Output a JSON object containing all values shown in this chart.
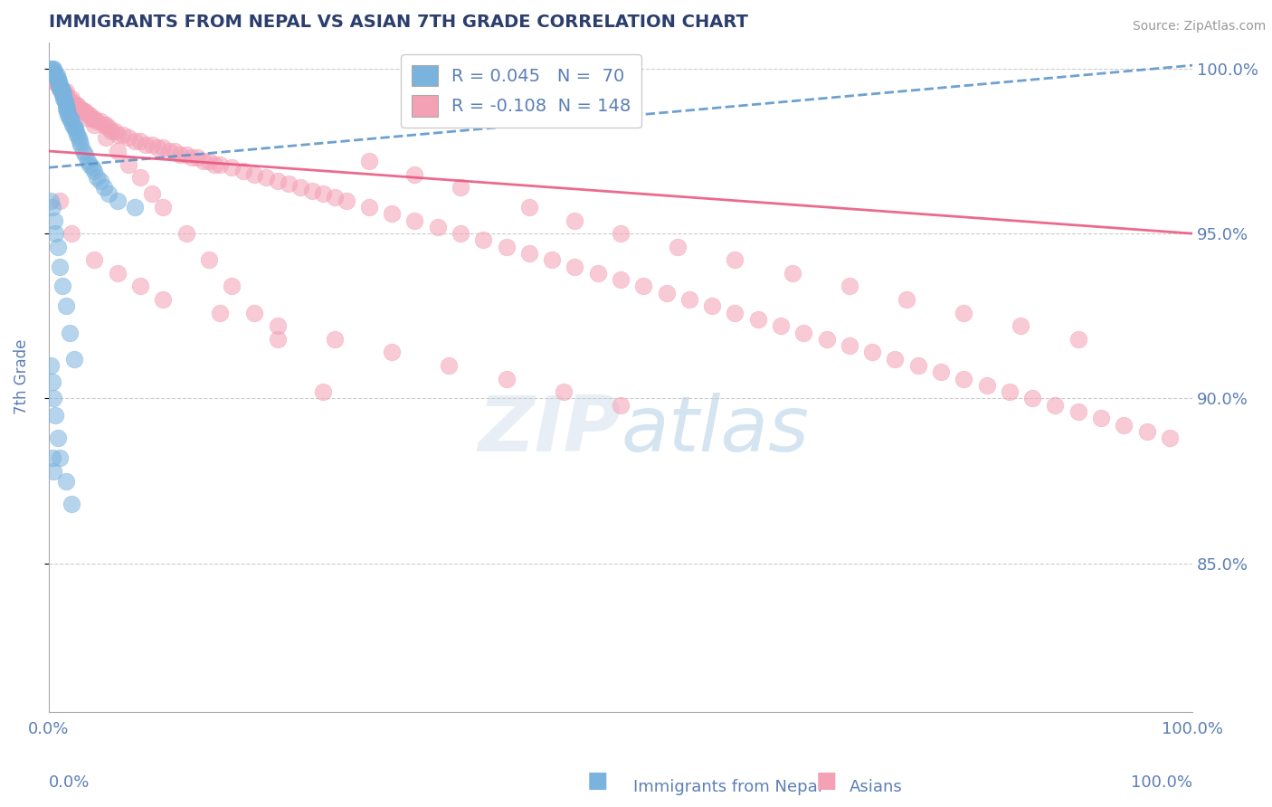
{
  "title": "IMMIGRANTS FROM NEPAL VS ASIAN 7TH GRADE CORRELATION CHART",
  "source_text": "Source: ZipAtlas.com",
  "ylabel": "7th Grade",
  "legend_blue_r": "R = 0.045",
  "legend_blue_n": "N =  70",
  "legend_pink_r": "R = -0.108",
  "legend_pink_n": "N = 148",
  "legend_blue_label": "Immigrants from Nepal",
  "legend_pink_label": "Asians",
  "x_min": 0.0,
  "x_max": 1.0,
  "y_min": 0.805,
  "y_max": 1.008,
  "y_ticks": [
    0.85,
    0.9,
    0.95,
    1.0
  ],
  "y_tick_labels": [
    "85.0%",
    "90.0%",
    "95.0%",
    "100.0%"
  ],
  "blue_color": "#7ab4de",
  "pink_color": "#f4a0b5",
  "blue_line_color": "#5590c8",
  "pink_line_color": "#e8507a",
  "title_color": "#2c3e6e",
  "label_color": "#5b7fb5",
  "watermark_color": "#c8d8ee",
  "blue_line_y0": 0.97,
  "blue_line_y1": 1.001,
  "pink_line_y0": 0.975,
  "pink_line_y1": 0.95,
  "blue_scatter_x": [
    0.002,
    0.003,
    0.004,
    0.005,
    0.005,
    0.006,
    0.007,
    0.007,
    0.008,
    0.008,
    0.009,
    0.009,
    0.01,
    0.01,
    0.011,
    0.011,
    0.012,
    0.012,
    0.013,
    0.013,
    0.014,
    0.014,
    0.015,
    0.015,
    0.016,
    0.016,
    0.017,
    0.018,
    0.019,
    0.02,
    0.021,
    0.022,
    0.023,
    0.024,
    0.025,
    0.026,
    0.027,
    0.028,
    0.03,
    0.032,
    0.034,
    0.036,
    0.038,
    0.04,
    0.042,
    0.045,
    0.048,
    0.052,
    0.06,
    0.075,
    0.002,
    0.003,
    0.005,
    0.006,
    0.008,
    0.01,
    0.012,
    0.015,
    0.018,
    0.022,
    0.002,
    0.003,
    0.004,
    0.006,
    0.008,
    0.01,
    0.015,
    0.02,
    0.003,
    0.004
  ],
  "blue_scatter_y": [
    1.0,
    1.0,
    1.0,
    0.999,
    0.998,
    0.998,
    0.998,
    0.997,
    0.997,
    0.996,
    0.996,
    0.995,
    0.995,
    0.994,
    0.994,
    0.993,
    0.993,
    0.992,
    0.992,
    0.991,
    0.99,
    0.99,
    0.989,
    0.988,
    0.988,
    0.987,
    0.986,
    0.985,
    0.985,
    0.984,
    0.983,
    0.982,
    0.982,
    0.981,
    0.98,
    0.979,
    0.978,
    0.977,
    0.975,
    0.974,
    0.972,
    0.971,
    0.97,
    0.969,
    0.967,
    0.966,
    0.964,
    0.962,
    0.96,
    0.958,
    0.96,
    0.958,
    0.954,
    0.95,
    0.946,
    0.94,
    0.934,
    0.928,
    0.92,
    0.912,
    0.91,
    0.905,
    0.9,
    0.895,
    0.888,
    0.882,
    0.875,
    0.868,
    0.882,
    0.878
  ],
  "pink_scatter_x": [
    0.002,
    0.003,
    0.004,
    0.005,
    0.006,
    0.007,
    0.008,
    0.009,
    0.01,
    0.011,
    0.012,
    0.013,
    0.014,
    0.015,
    0.016,
    0.018,
    0.02,
    0.022,
    0.024,
    0.026,
    0.028,
    0.03,
    0.032,
    0.034,
    0.036,
    0.038,
    0.04,
    0.042,
    0.045,
    0.048,
    0.05,
    0.052,
    0.055,
    0.058,
    0.06,
    0.065,
    0.07,
    0.075,
    0.08,
    0.085,
    0.09,
    0.095,
    0.1,
    0.105,
    0.11,
    0.115,
    0.12,
    0.125,
    0.13,
    0.135,
    0.14,
    0.145,
    0.15,
    0.16,
    0.17,
    0.18,
    0.19,
    0.2,
    0.21,
    0.22,
    0.23,
    0.24,
    0.25,
    0.26,
    0.28,
    0.3,
    0.32,
    0.34,
    0.36,
    0.38,
    0.4,
    0.42,
    0.44,
    0.46,
    0.48,
    0.5,
    0.52,
    0.54,
    0.56,
    0.58,
    0.6,
    0.62,
    0.64,
    0.66,
    0.68,
    0.7,
    0.72,
    0.74,
    0.76,
    0.78,
    0.8,
    0.82,
    0.84,
    0.86,
    0.88,
    0.9,
    0.92,
    0.94,
    0.96,
    0.98,
    0.005,
    0.01,
    0.015,
    0.02,
    0.025,
    0.03,
    0.035,
    0.04,
    0.05,
    0.06,
    0.07,
    0.08,
    0.09,
    0.1,
    0.12,
    0.14,
    0.16,
    0.18,
    0.2,
    0.24,
    0.28,
    0.32,
    0.36,
    0.42,
    0.46,
    0.5,
    0.55,
    0.6,
    0.65,
    0.7,
    0.75,
    0.8,
    0.85,
    0.9,
    0.5,
    0.45,
    0.4,
    0.35,
    0.3,
    0.25,
    0.2,
    0.15,
    0.1,
    0.08,
    0.06,
    0.04,
    0.02,
    0.01
  ],
  "pink_scatter_y": [
    0.998,
    0.998,
    0.997,
    0.997,
    0.996,
    0.996,
    0.995,
    0.995,
    0.994,
    0.994,
    0.993,
    0.993,
    0.992,
    0.992,
    0.991,
    0.99,
    0.99,
    0.989,
    0.989,
    0.988,
    0.988,
    0.987,
    0.987,
    0.986,
    0.986,
    0.985,
    0.985,
    0.984,
    0.984,
    0.983,
    0.983,
    0.982,
    0.981,
    0.981,
    0.98,
    0.98,
    0.979,
    0.978,
    0.978,
    0.977,
    0.977,
    0.976,
    0.976,
    0.975,
    0.975,
    0.974,
    0.974,
    0.973,
    0.973,
    0.972,
    0.972,
    0.971,
    0.971,
    0.97,
    0.969,
    0.968,
    0.967,
    0.966,
    0.965,
    0.964,
    0.963,
    0.962,
    0.961,
    0.96,
    0.958,
    0.956,
    0.954,
    0.952,
    0.95,
    0.948,
    0.946,
    0.944,
    0.942,
    0.94,
    0.938,
    0.936,
    0.934,
    0.932,
    0.93,
    0.928,
    0.926,
    0.924,
    0.922,
    0.92,
    0.918,
    0.916,
    0.914,
    0.912,
    0.91,
    0.908,
    0.906,
    0.904,
    0.902,
    0.9,
    0.898,
    0.896,
    0.894,
    0.892,
    0.89,
    0.888,
    0.996,
    0.995,
    0.993,
    0.991,
    0.989,
    0.987,
    0.985,
    0.983,
    0.979,
    0.975,
    0.971,
    0.967,
    0.962,
    0.958,
    0.95,
    0.942,
    0.934,
    0.926,
    0.918,
    0.902,
    0.972,
    0.968,
    0.964,
    0.958,
    0.954,
    0.95,
    0.946,
    0.942,
    0.938,
    0.934,
    0.93,
    0.926,
    0.922,
    0.918,
    0.898,
    0.902,
    0.906,
    0.91,
    0.914,
    0.918,
    0.922,
    0.926,
    0.93,
    0.934,
    0.938,
    0.942,
    0.95,
    0.96
  ],
  "dpi": 100,
  "figsize": [
    14.06,
    8.92
  ]
}
